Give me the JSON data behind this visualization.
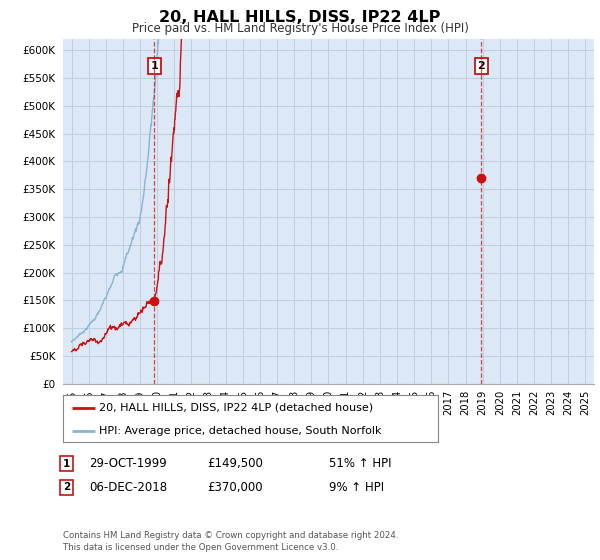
{
  "title": "20, HALL HILLS, DISS, IP22 4LP",
  "subtitle": "Price paid vs. HM Land Registry's House Price Index (HPI)",
  "ylim": [
    0,
    620000
  ],
  "xlim_start": 1994.5,
  "xlim_end": 2025.5,
  "hpi_color": "#8ab4d4",
  "price_color": "#cc1111",
  "grid_color": "#c0cfe0",
  "plot_bg_color": "#dce8f5",
  "fig_bg_color": "#ffffff",
  "legend_label_price": "20, HALL HILLS, DISS, IP22 4LP (detached house)",
  "legend_label_hpi": "HPI: Average price, detached house, South Norfolk",
  "transaction1_date": "29-OCT-1999",
  "transaction1_price": "£149,500",
  "transaction1_hpi": "51% ↑ HPI",
  "transaction1_x": 1999.83,
  "transaction1_y": 149500,
  "transaction2_date": "06-DEC-2018",
  "transaction2_price": "£370,000",
  "transaction2_hpi": "9% ↑ HPI",
  "transaction2_x": 2018.92,
  "transaction2_y": 370000,
  "footer": "Contains HM Land Registry data © Crown copyright and database right 2024.\nThis data is licensed under the Open Government Licence v3.0.",
  "yticks": [
    0,
    50000,
    100000,
    150000,
    200000,
    250000,
    300000,
    350000,
    400000,
    450000,
    500000,
    550000,
    600000
  ],
  "ytick_labels": [
    "£0",
    "£50K",
    "£100K",
    "£150K",
    "£200K",
    "£250K",
    "£300K",
    "£350K",
    "£400K",
    "£450K",
    "£500K",
    "£550K",
    "£600K"
  ]
}
